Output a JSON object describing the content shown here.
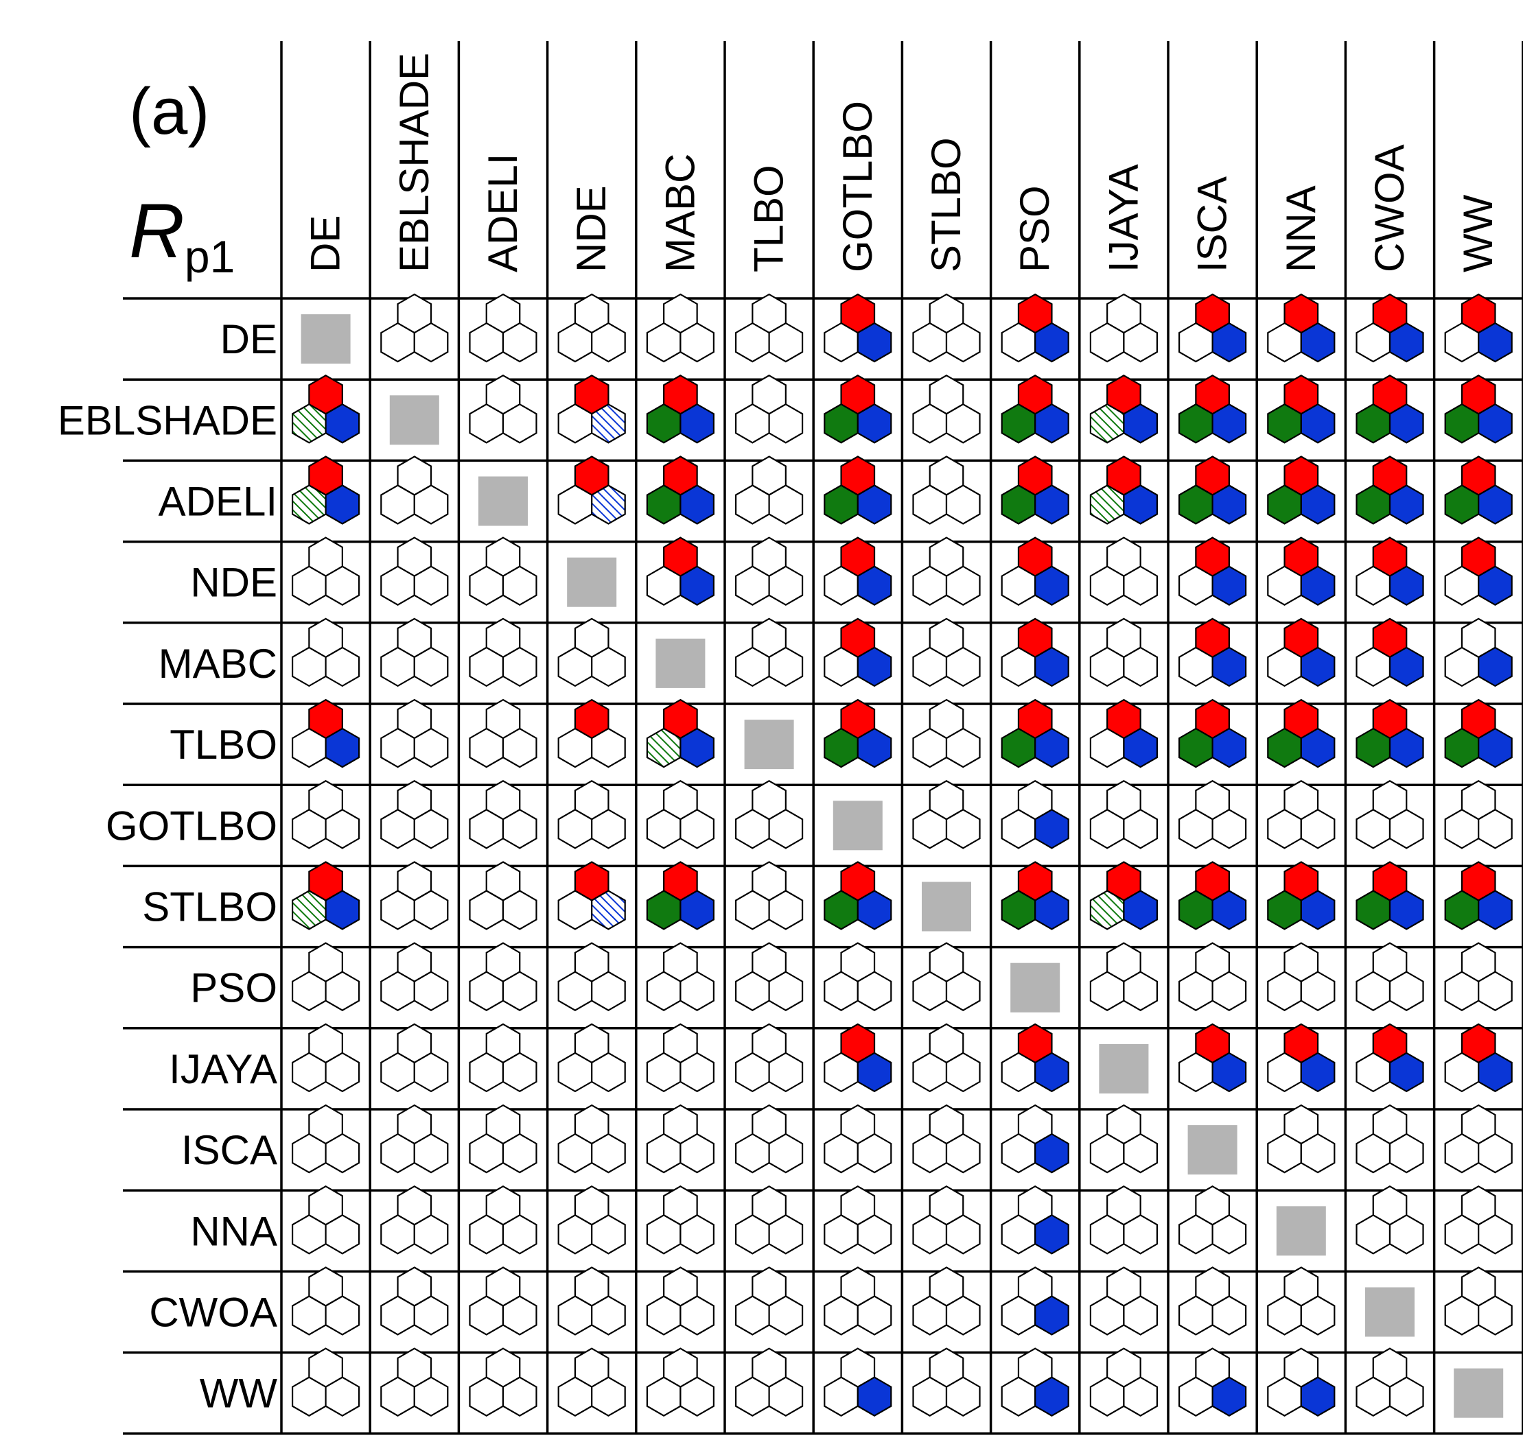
{
  "panel_label": "(a)",
  "metric": {
    "symbol": "R",
    "subscript": "p1"
  },
  "algorithms": [
    "DE",
    "EBLSHADE",
    "ADELI",
    "NDE",
    "MABC",
    "TLBO",
    "GOTLBO",
    "STLBO",
    "PSO",
    "IJAYA",
    "ISCA",
    "NNA",
    "CWOA",
    "WW"
  ],
  "legend_codes": {
    "0": "blank",
    "s": "diagonal (self comparison)",
    "t": "top hexagon red",
    "g": "bottom-left hexagon green",
    "h": "bottom-left hexagon green hatched",
    "b": "bottom-right hexagon blue",
    "d": "bottom-right hexagon blue hatched"
  },
  "colors": {
    "red": "#ff0000",
    "green": "#107a10",
    "blue": "#0a36d6",
    "diagonal": "#b4b4b4",
    "line": "#000000"
  },
  "matrix": [
    [
      "s",
      "0",
      "0",
      "0",
      "0",
      "0",
      "tb",
      "0",
      "tb",
      "0",
      "tb",
      "tb",
      "tb",
      "tb"
    ],
    [
      "thb",
      "s",
      "0",
      "td",
      "tgb",
      "0",
      "tgb",
      "0",
      "tgb",
      "thb",
      "tgb",
      "tgb",
      "tgb",
      "tgb"
    ],
    [
      "thb",
      "0",
      "s",
      "td",
      "tgb",
      "0",
      "tgb",
      "0",
      "tgb",
      "thb",
      "tgb",
      "tgb",
      "tgb",
      "tgb"
    ],
    [
      "0",
      "0",
      "0",
      "s",
      "tb",
      "0",
      "tb",
      "0",
      "tb",
      "0",
      "tb",
      "tb",
      "tb",
      "tb"
    ],
    [
      "0",
      "0",
      "0",
      "0",
      "s",
      "0",
      "tb",
      "0",
      "tb",
      "0",
      "tb",
      "tb",
      "tb",
      "b"
    ],
    [
      "tb",
      "0",
      "0",
      "t",
      "thb",
      "s",
      "tgb",
      "0",
      "tgb",
      "tb",
      "tgb",
      "tgb",
      "tgb",
      "tgb"
    ],
    [
      "0",
      "0",
      "0",
      "0",
      "0",
      "0",
      "s",
      "0",
      "b",
      "0",
      "0",
      "0",
      "0",
      "0"
    ],
    [
      "thb",
      "0",
      "0",
      "td",
      "tgb",
      "0",
      "tgb",
      "s",
      "tgb",
      "thb",
      "tgb",
      "tgb",
      "tgb",
      "tgb"
    ],
    [
      "0",
      "0",
      "0",
      "0",
      "0",
      "0",
      "0",
      "0",
      "s",
      "0",
      "0",
      "0",
      "0",
      "0"
    ],
    [
      "0",
      "0",
      "0",
      "0",
      "0",
      "0",
      "tb",
      "0",
      "tb",
      "s",
      "tb",
      "tb",
      "tb",
      "tb"
    ],
    [
      "0",
      "0",
      "0",
      "0",
      "0",
      "0",
      "0",
      "0",
      "b",
      "0",
      "s",
      "0",
      "0",
      "0"
    ],
    [
      "0",
      "0",
      "0",
      "0",
      "0",
      "0",
      "0",
      "0",
      "b",
      "0",
      "0",
      "s",
      "0",
      "0"
    ],
    [
      "0",
      "0",
      "0",
      "0",
      "0",
      "0",
      "0",
      "0",
      "b",
      "0",
      "0",
      "0",
      "s",
      "0"
    ],
    [
      "0",
      "0",
      "0",
      "0",
      "0",
      "0",
      "b",
      "0",
      "b",
      "0",
      "b",
      "b",
      "0",
      "s"
    ]
  ]
}
